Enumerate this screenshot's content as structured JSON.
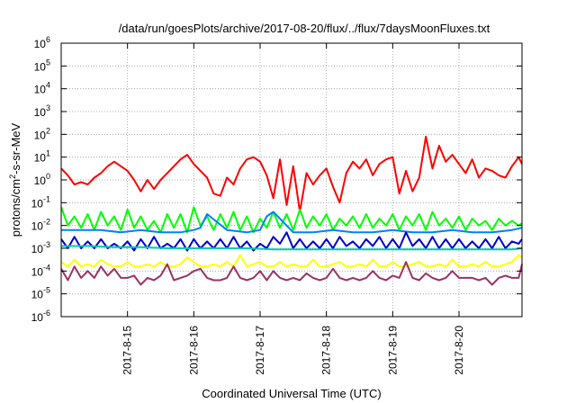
{
  "chart_data": {
    "type": "line",
    "title": "/data/run/goesPlots/archive/2017-08-20/flux/../flux/7daysMoonFluxes.txt",
    "xlabel": "Coordinated Universal Time (UTC)",
    "ylabel": {
      "base": "protons/cm",
      "exponent": "2",
      "rest": "-s-sr-MeV"
    },
    "xlim": [
      14.0,
      20.95
    ],
    "ylim_exp": [
      -6,
      6
    ],
    "y_scale": "log",
    "y_ticks": [
      {
        "base": "10",
        "exp": "-6",
        "value": -6
      },
      {
        "base": "10",
        "exp": "-5",
        "value": -5
      },
      {
        "base": "10",
        "exp": "-4",
        "value": -4
      },
      {
        "base": "10",
        "exp": "-3",
        "value": -3
      },
      {
        "base": "10",
        "exp": "-2",
        "value": -2
      },
      {
        "base": "10",
        "exp": "-1",
        "value": -1
      },
      {
        "base": "10",
        "exp": "0",
        "value": 0
      },
      {
        "base": "10",
        "exp": "1",
        "value": 1
      },
      {
        "base": "10",
        "exp": "2",
        "value": 2
      },
      {
        "base": "10",
        "exp": "3",
        "value": 3
      },
      {
        "base": "10",
        "exp": "4",
        "value": 4
      },
      {
        "base": "10",
        "exp": "5",
        "value": 5
      },
      {
        "base": "10",
        "exp": "6",
        "value": 6
      }
    ],
    "x_ticks": [
      {
        "label": "2017-8-15",
        "value": 15
      },
      {
        "label": "2017-8-16",
        "value": 16
      },
      {
        "label": "2017-8-17",
        "value": 17
      },
      {
        "label": "2017-8-18",
        "value": 18
      },
      {
        "label": "2017-8-19",
        "value": 19
      },
      {
        "label": "2017-8-20",
        "value": 20
      }
    ],
    "grid": true,
    "legend": "none",
    "series": [
      {
        "color": "#ff0000",
        "x": [
          14.0,
          14.1,
          14.2,
          14.3,
          14.4,
          14.5,
          14.6,
          14.7,
          14.8,
          14.9,
          15.0,
          15.1,
          15.2,
          15.3,
          15.4,
          15.5,
          15.6,
          15.7,
          15.8,
          15.9,
          16.0,
          16.1,
          16.2,
          16.3,
          16.4,
          16.5,
          16.6,
          16.7,
          16.8,
          16.9,
          17.0,
          17.1,
          17.2,
          17.3,
          17.4,
          17.5,
          17.6,
          17.7,
          17.8,
          17.9,
          18.0,
          18.1,
          18.2,
          18.3,
          18.4,
          18.5,
          18.6,
          18.7,
          18.8,
          18.9,
          19.0,
          19.1,
          19.2,
          19.3,
          19.4,
          19.5,
          19.6,
          19.7,
          19.8,
          19.9,
          20.0,
          20.1,
          20.2,
          20.3,
          20.4,
          20.5,
          20.6,
          20.7,
          20.8,
          20.9,
          20.95
        ],
        "values_log10": [
          0.5,
          0.2,
          -0.2,
          -0.1,
          -0.2,
          0.1,
          0.3,
          0.6,
          0.8,
          0.6,
          0.4,
          0.0,
          -0.5,
          0.0,
          -0.4,
          0.0,
          0.3,
          0.6,
          0.9,
          1.1,
          0.7,
          0.4,
          0.1,
          -0.6,
          -0.7,
          0.1,
          -0.2,
          0.5,
          0.9,
          1.0,
          0.8,
          0.2,
          -0.8,
          0.9,
          -1.1,
          0.6,
          -1.4,
          0.3,
          -0.2,
          0.2,
          0.5,
          -0.3,
          -1.0,
          0.3,
          0.8,
          0.5,
          0.9,
          0.2,
          0.7,
          0.9,
          1.0,
          -0.6,
          0.4,
          -0.5,
          0.1,
          1.9,
          0.5,
          1.5,
          0.8,
          1.1,
          0.7,
          0.3,
          0.9,
          0.1,
          0.5,
          0.4,
          0.2,
          0.1,
          0.6,
          1.0,
          0.7
        ]
      },
      {
        "color": "#00ff00",
        "x": [
          14.0,
          14.1,
          14.2,
          14.3,
          14.4,
          14.5,
          14.6,
          14.7,
          14.8,
          14.9,
          15.0,
          15.1,
          15.2,
          15.3,
          15.4,
          15.5,
          15.6,
          15.7,
          15.8,
          15.9,
          16.0,
          16.1,
          16.2,
          16.3,
          16.4,
          16.5,
          16.6,
          16.7,
          16.8,
          16.9,
          17.0,
          17.1,
          17.2,
          17.3,
          17.4,
          17.5,
          17.6,
          17.7,
          17.8,
          17.9,
          18.0,
          18.1,
          18.2,
          18.3,
          18.4,
          18.5,
          18.6,
          18.7,
          18.8,
          18.9,
          19.0,
          19.1,
          19.2,
          19.3,
          19.4,
          19.5,
          19.6,
          19.7,
          19.8,
          19.9,
          20.0,
          20.1,
          20.2,
          20.3,
          20.4,
          20.5,
          20.6,
          20.7,
          20.8,
          20.9,
          20.95
        ],
        "values_log10": [
          -1.2,
          -2.0,
          -1.6,
          -2.1,
          -1.5,
          -2.2,
          -1.4,
          -2.0,
          -1.6,
          -2.2,
          -1.3,
          -2.1,
          -1.6,
          -2.2,
          -1.8,
          -2.3,
          -1.5,
          -2.1,
          -1.5,
          -2.3,
          -1.2,
          -2.0,
          -1.6,
          -2.2,
          -1.5,
          -2.1,
          -1.4,
          -2.2,
          -1.6,
          -2.3,
          -1.7,
          -2.1,
          -1.4,
          -2.1,
          -1.5,
          -2.2,
          -1.3,
          -2.1,
          -1.6,
          -2.0,
          -1.5,
          -2.2,
          -1.7,
          -2.0,
          -1.6,
          -2.1,
          -1.5,
          -2.1,
          -1.7,
          -2.0,
          -1.5,
          -2.2,
          -1.6,
          -2.0,
          -1.5,
          -2.2,
          -1.4,
          -2.0,
          -1.7,
          -2.1,
          -1.6,
          -2.2,
          -1.7,
          -2.0,
          -1.8,
          -2.2,
          -1.7,
          -2.0,
          -1.8,
          -2.0,
          -1.9
        ]
      },
      {
        "color": "#0080ff",
        "x": [
          14.0,
          14.3,
          14.6,
          14.9,
          15.2,
          15.5,
          15.8,
          16.0,
          16.1,
          16.2,
          16.5,
          16.8,
          17.0,
          17.1,
          17.2,
          17.5,
          17.8,
          18.1,
          18.4,
          18.7,
          19.0,
          19.3,
          19.6,
          19.9,
          20.2,
          20.5,
          20.8,
          20.95
        ],
        "values_log10": [
          -2.2,
          -2.2,
          -2.2,
          -2.3,
          -2.2,
          -2.3,
          -2.3,
          -2.2,
          -2.1,
          -1.5,
          -2.2,
          -2.3,
          -2.2,
          -1.6,
          -1.4,
          -2.3,
          -2.3,
          -2.2,
          -2.3,
          -2.3,
          -2.2,
          -2.3,
          -2.3,
          -2.2,
          -2.3,
          -2.3,
          -2.2,
          -2.1
        ]
      },
      {
        "color": "#0000cc",
        "x": [
          14.0,
          14.1,
          14.2,
          14.3,
          14.4,
          14.5,
          14.6,
          14.7,
          14.8,
          14.9,
          15.0,
          15.1,
          15.2,
          15.3,
          15.4,
          15.5,
          15.6,
          15.7,
          15.8,
          15.9,
          16.0,
          16.1,
          16.2,
          16.3,
          16.4,
          16.5,
          16.6,
          16.7,
          16.8,
          16.9,
          17.0,
          17.1,
          17.2,
          17.3,
          17.4,
          17.5,
          17.6,
          17.7,
          17.8,
          17.9,
          18.0,
          18.1,
          18.2,
          18.3,
          18.4,
          18.5,
          18.6,
          18.7,
          18.8,
          18.9,
          19.0,
          19.1,
          19.2,
          19.3,
          19.4,
          19.5,
          19.6,
          19.7,
          19.8,
          19.9,
          20.0,
          20.1,
          20.2,
          20.3,
          20.4,
          20.5,
          20.6,
          20.7,
          20.8,
          20.9,
          20.95
        ],
        "values_log10": [
          -2.6,
          -3.0,
          -2.5,
          -3.0,
          -2.7,
          -3.0,
          -2.6,
          -3.0,
          -2.8,
          -3.0,
          -2.7,
          -3.1,
          -2.6,
          -3.0,
          -2.5,
          -3.0,
          -2.8,
          -3.0,
          -2.6,
          -3.1,
          -2.6,
          -3.0,
          -2.7,
          -3.0,
          -2.6,
          -3.0,
          -2.5,
          -3.0,
          -2.7,
          -3.1,
          -2.8,
          -3.0,
          -2.5,
          -2.8,
          -2.3,
          -3.0,
          -2.6,
          -3.0,
          -2.7,
          -3.0,
          -2.6,
          -3.0,
          -2.5,
          -2.9,
          -2.7,
          -3.0,
          -2.6,
          -2.9,
          -2.5,
          -3.0,
          -2.6,
          -3.0,
          -2.3,
          -2.9,
          -2.6,
          -3.0,
          -2.5,
          -3.0,
          -2.6,
          -3.0,
          -2.6,
          -3.0,
          -2.7,
          -3.0,
          -2.6,
          -3.0,
          -2.5,
          -3.0,
          -2.7,
          -2.8,
          -2.6
        ]
      },
      {
        "color": "#00ccaa",
        "x": [
          14.0,
          14.4,
          14.8,
          15.2,
          15.6,
          16.0,
          16.4,
          16.8,
          17.2,
          17.6,
          18.0,
          18.4,
          18.8,
          19.2,
          19.6,
          20.0,
          20.4,
          20.8,
          20.95
        ],
        "values_log10": [
          -2.9,
          -2.9,
          -2.95,
          -2.95,
          -3.0,
          -3.0,
          -3.0,
          -3.0,
          -3.05,
          -3.05,
          -3.05,
          -3.05,
          -3.05,
          -3.05,
          -3.05,
          -3.05,
          -3.05,
          -3.05,
          -3.0
        ]
      },
      {
        "color": "#ffff00",
        "x": [
          14.0,
          14.1,
          14.2,
          14.3,
          14.4,
          14.5,
          14.6,
          14.7,
          14.8,
          14.9,
          15.0,
          15.1,
          15.2,
          15.3,
          15.4,
          15.5,
          15.6,
          15.7,
          15.8,
          15.9,
          16.0,
          16.1,
          16.2,
          16.3,
          16.4,
          16.5,
          16.6,
          16.7,
          16.8,
          16.9,
          17.0,
          17.1,
          17.2,
          17.3,
          17.4,
          17.5,
          17.6,
          17.7,
          17.8,
          17.9,
          18.0,
          18.1,
          18.2,
          18.3,
          18.4,
          18.5,
          18.6,
          18.7,
          18.8,
          18.9,
          19.0,
          19.1,
          19.2,
          19.3,
          19.4,
          19.5,
          19.6,
          19.7,
          19.8,
          19.9,
          20.0,
          20.1,
          20.2,
          20.3,
          20.4,
          20.5,
          20.6,
          20.7,
          20.8,
          20.9,
          20.95
        ],
        "values_log10": [
          -3.6,
          -3.8,
          -3.5,
          -3.8,
          -3.7,
          -3.8,
          -3.5,
          -3.7,
          -3.8,
          -3.8,
          -3.6,
          -3.8,
          -3.8,
          -3.7,
          -3.8,
          -3.6,
          -3.8,
          -3.8,
          -3.7,
          -3.4,
          -3.6,
          -3.8,
          -3.8,
          -3.7,
          -3.8,
          -3.6,
          -3.8,
          -3.3,
          -3.8,
          -3.7,
          -3.6,
          -3.8,
          -3.8,
          -3.6,
          -3.8,
          -3.7,
          -3.8,
          -3.8,
          -3.5,
          -3.8,
          -3.8,
          -3.7,
          -3.6,
          -3.8,
          -3.8,
          -3.7,
          -3.8,
          -3.5,
          -3.8,
          -3.8,
          -3.6,
          -3.8,
          -3.8,
          -3.7,
          -3.6,
          -3.8,
          -3.8,
          -3.7,
          -3.8,
          -3.5,
          -3.8,
          -3.8,
          -3.7,
          -3.8,
          -3.6,
          -3.8,
          -3.8,
          -3.7,
          -3.6,
          -3.3,
          -3.4
        ]
      },
      {
        "color": "#993366",
        "x": [
          14.0,
          14.1,
          14.2,
          14.3,
          14.4,
          14.5,
          14.6,
          14.7,
          14.8,
          14.9,
          15.0,
          15.1,
          15.2,
          15.3,
          15.4,
          15.5,
          15.6,
          15.7,
          15.8,
          15.9,
          16.0,
          16.1,
          16.2,
          16.3,
          16.4,
          16.5,
          16.6,
          16.7,
          16.8,
          16.9,
          17.0,
          17.1,
          17.2,
          17.3,
          17.4,
          17.5,
          17.6,
          17.7,
          17.8,
          17.9,
          18.0,
          18.1,
          18.2,
          18.3,
          18.4,
          18.5,
          18.6,
          18.7,
          18.8,
          18.9,
          19.0,
          19.1,
          19.2,
          19.3,
          19.4,
          19.5,
          19.6,
          19.7,
          19.8,
          19.9,
          20.0,
          20.1,
          20.2,
          20.3,
          20.4,
          20.5,
          20.6,
          20.7,
          20.8,
          20.9,
          20.95
        ],
        "values_log10": [
          -3.9,
          -4.4,
          -3.8,
          -4.3,
          -4.0,
          -4.3,
          -3.8,
          -4.2,
          -3.9,
          -4.3,
          -4.3,
          -4.2,
          -4.6,
          -4.3,
          -4.4,
          -4.2,
          -3.7,
          -4.4,
          -4.3,
          -4.2,
          -4.0,
          -3.9,
          -4.3,
          -4.4,
          -4.4,
          -4.3,
          -3.8,
          -4.3,
          -4.4,
          -4.3,
          -4.0,
          -4.4,
          -4.0,
          -4.3,
          -4.4,
          -4.3,
          -4.4,
          -4.1,
          -4.3,
          -4.4,
          -4.3,
          -3.9,
          -4.3,
          -4.4,
          -4.3,
          -4.4,
          -4.3,
          -4.0,
          -4.3,
          -4.4,
          -4.2,
          -4.3,
          -3.6,
          -4.3,
          -4.4,
          -4.1,
          -4.3,
          -4.4,
          -4.3,
          -4.0,
          -4.3,
          -4.3,
          -4.3,
          -4.4,
          -4.3,
          -4.6,
          -4.3,
          -4.2,
          -4.3,
          -4.3,
          -3.7
        ]
      }
    ]
  }
}
